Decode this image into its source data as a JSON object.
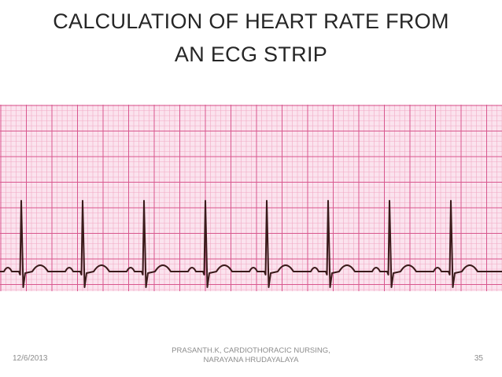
{
  "slide": {
    "title_line1": "CALCULATION OF HEART RATE FROM",
    "title_line2": "AN ECG STRIP"
  },
  "ecg_strip": {
    "grid_color_minor": "#f2a9c4",
    "grid_color_major": "#d8578e",
    "background": "#fbe3ee",
    "trace_color": "#3a1a1a",
    "beat_count": 8,
    "rhythm": "regular"
  },
  "footer": {
    "date": "12/6/2013",
    "author_line1": "PRASANTH.K, CARDIOTHORACIC NURSING,",
    "author_line2": "NARAYANA HRUDAYALAYA",
    "slide_number": "35"
  }
}
